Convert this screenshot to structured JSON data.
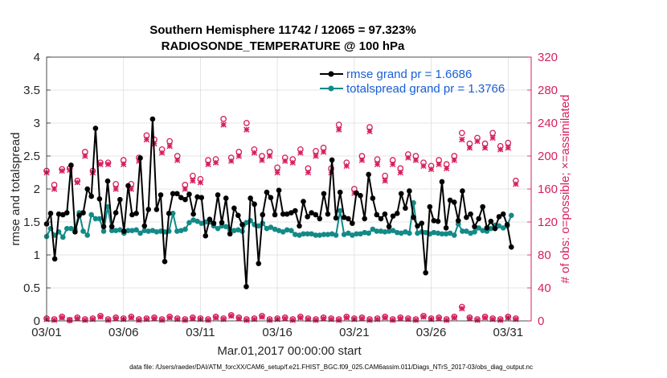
{
  "colors": {
    "rmse": "#000000",
    "spread": "#138a87",
    "obs": "#d61f5a",
    "legend_text": "#1a5fd6",
    "grid": "#dedede",
    "axes": "#262626"
  },
  "chart_data": {
    "type": "line",
    "title": "Southern Hemisphere 11742 / 12065 = 97.323%",
    "subtitle": "RADIOSONDE_TEMPERATURE @ 100 hPa",
    "xlabel": "Mar.01,2017 00:00:00 start",
    "ylabel": "rmse and totalspread",
    "y2label": "# of obs: o=possible; ×=assimilated",
    "footnote": "data file: /Users/raeder/DAI/ATM_forcXX/CAM6_setup/f.e21.FHIST_BGC.f09_025.CAM6assim.011/Diags_NTrS_2017-03/obs_diag_output.nc",
    "xlim": [
      1,
      32.5
    ],
    "ylim": [
      0,
      4
    ],
    "y2lim": [
      0,
      320
    ],
    "x_ticks": [
      1,
      6,
      11,
      16,
      21,
      26,
      31
    ],
    "x_tick_labels": [
      "03/01",
      "03/06",
      "03/11",
      "03/16",
      "03/21",
      "03/26",
      "03/31"
    ],
    "y_ticks": [
      0,
      0.5,
      1,
      1.5,
      2,
      2.5,
      3,
      3.5,
      4
    ],
    "y_tick_labels": [
      "0",
      "0.5",
      "1",
      "1.5",
      "2",
      "2.5",
      "3",
      "3.5",
      "4"
    ],
    "y2_ticks": [
      0,
      40,
      80,
      120,
      160,
      200,
      240,
      280,
      320
    ],
    "y2_tick_labels": [
      "0",
      "40",
      "80",
      "120",
      "160",
      "200",
      "240",
      "280",
      "320"
    ],
    "grid": true,
    "legend_position": "top-right",
    "series": [
      {
        "name": "rmse grand pr = 1.6686",
        "axis": "left",
        "marker": "dot",
        "values": [
          1.47,
          1.63,
          0.94,
          1.62,
          1.61,
          1.64,
          2.36,
          1.35,
          1.6,
          1.64,
          2.0,
          1.89,
          2.92,
          1.85,
          1.43,
          2.12,
          1.43,
          1.64,
          1.84,
          1.36,
          2.05,
          1.61,
          1.63,
          2.47,
          1.44,
          1.69,
          3.06,
          1.69,
          1.91,
          0.9,
          1.63,
          1.93,
          1.93,
          1.87,
          1.84,
          1.92,
          1.62,
          1.88,
          1.87,
          1.29,
          1.54,
          1.48,
          1.91,
          1.49,
          1.86,
          1.32,
          1.71,
          1.6,
          1.46,
          0.52,
          1.86,
          1.77,
          0.87,
          1.61,
          1.95,
          1.87,
          1.61,
          1.98,
          1.62,
          1.62,
          1.64,
          1.67,
          1.44,
          1.81,
          1.58,
          1.64,
          1.61,
          1.55,
          1.93,
          1.62,
          2.44,
          1.56,
          1.95,
          1.57,
          1.55,
          1.48,
          1.94,
          1.9,
          1.55,
          2.22,
          1.86,
          1.61,
          1.55,
          1.62,
          1.43,
          1.59,
          1.63,
          1.93,
          1.71,
          1.97,
          1.57,
          1.44,
          1.48,
          0.73,
          1.73,
          1.52,
          1.51,
          2.11,
          1.41,
          1.83,
          1.8,
          1.52,
          1.97,
          1.57,
          1.62,
          1.43,
          1.55,
          1.73,
          1.41,
          1.51,
          1.4,
          1.58,
          1.62,
          1.46,
          1.12
        ],
        "x": [
          1.0,
          1.26,
          1.53,
          1.79,
          2.06,
          2.32,
          2.59,
          2.85,
          3.12,
          3.38,
          3.65,
          3.91,
          4.18,
          4.44,
          4.71,
          4.97,
          5.24,
          5.5,
          5.77,
          6.03,
          6.3,
          6.56,
          6.83,
          7.09,
          7.36,
          7.62,
          7.89,
          8.15,
          8.42,
          8.68,
          8.95,
          9.21,
          9.48,
          9.74,
          10.01,
          10.27,
          10.54,
          10.8,
          11.07,
          11.33,
          11.6,
          11.86,
          12.13,
          12.39,
          12.66,
          12.92,
          13.19,
          13.45,
          13.72,
          13.98,
          14.25,
          14.51,
          14.78,
          15.04,
          15.31,
          15.57,
          15.84,
          16.1,
          16.37,
          16.63,
          16.9,
          17.16,
          17.43,
          17.69,
          17.96,
          18.22,
          18.49,
          18.75,
          19.02,
          19.28,
          19.55,
          19.81,
          20.08,
          20.34,
          20.61,
          20.87,
          21.14,
          21.4,
          21.67,
          21.93,
          22.2,
          22.46,
          22.73,
          22.99,
          23.26,
          23.52,
          23.79,
          24.05,
          24.32,
          24.58,
          24.85,
          25.11,
          25.38,
          25.64,
          25.91,
          26.17,
          26.44,
          26.7,
          26.97,
          27.23,
          27.5,
          27.76,
          28.03,
          28.29,
          28.56,
          28.82,
          29.09,
          29.35,
          29.62,
          29.88,
          30.15,
          30.41,
          30.68,
          30.94,
          31.21
        ]
      },
      {
        "name": "totalspread grand pr = 1.3766",
        "axis": "left",
        "marker": "dot",
        "values": [
          1.28,
          1.4,
          1.3,
          1.35,
          1.27,
          1.4,
          1.4,
          1.39,
          1.64,
          1.36,
          1.3,
          1.61,
          1.55,
          1.55,
          1.36,
          1.73,
          1.37,
          1.37,
          1.38,
          1.33,
          1.37,
          1.37,
          1.38,
          1.33,
          1.37,
          1.36,
          1.37,
          1.35,
          1.36,
          1.35,
          1.36,
          1.63,
          1.36,
          1.37,
          1.39,
          1.49,
          1.53,
          1.51,
          1.48,
          1.5,
          1.5,
          1.44,
          1.4,
          1.44,
          1.43,
          1.38,
          1.37,
          1.38,
          1.36,
          1.49,
          1.52,
          1.46,
          1.44,
          1.48,
          1.4,
          1.42,
          1.39,
          1.37,
          1.35,
          1.38,
          1.37,
          1.31,
          1.3,
          1.32,
          1.32,
          1.32,
          1.3,
          1.3,
          1.31,
          1.31,
          1.32,
          1.3,
          1.67,
          1.31,
          1.33,
          1.3,
          1.32,
          1.32,
          1.34,
          1.33,
          1.39,
          1.36,
          1.36,
          1.35,
          1.36,
          1.37,
          1.34,
          1.33,
          1.35,
          1.33,
          1.79,
          1.33,
          1.35,
          1.34,
          1.32,
          1.34,
          1.33,
          1.32,
          1.32,
          1.33,
          1.3,
          1.47,
          1.36,
          1.36,
          1.33,
          1.35,
          1.41,
          1.37,
          1.36,
          1.4,
          1.45,
          1.44,
          1.41,
          1.44,
          1.6
        ],
        "x": [
          1.0,
          1.26,
          1.53,
          1.79,
          2.06,
          2.32,
          2.59,
          2.85,
          3.12,
          3.38,
          3.65,
          3.91,
          4.18,
          4.44,
          4.71,
          4.97,
          5.24,
          5.5,
          5.77,
          6.03,
          6.3,
          6.56,
          6.83,
          7.09,
          7.36,
          7.62,
          7.89,
          8.15,
          8.42,
          8.68,
          8.95,
          9.21,
          9.48,
          9.74,
          10.01,
          10.27,
          10.54,
          10.8,
          11.07,
          11.33,
          11.6,
          11.86,
          12.13,
          12.39,
          12.66,
          12.92,
          13.19,
          13.45,
          13.72,
          13.98,
          14.25,
          14.51,
          14.78,
          15.04,
          15.31,
          15.57,
          15.84,
          16.1,
          16.37,
          16.63,
          16.9,
          17.16,
          17.43,
          17.69,
          17.96,
          18.22,
          18.49,
          18.75,
          19.02,
          19.28,
          19.55,
          19.81,
          20.08,
          20.34,
          20.61,
          20.87,
          21.14,
          21.4,
          21.67,
          21.93,
          22.2,
          22.46,
          22.73,
          22.99,
          23.26,
          23.52,
          23.79,
          24.05,
          24.32,
          24.58,
          24.85,
          25.11,
          25.38,
          25.64,
          25.91,
          26.17,
          26.44,
          26.7,
          26.97,
          27.23,
          27.5,
          27.76,
          28.03,
          28.29,
          28.56,
          28.82,
          29.09,
          29.35,
          29.62,
          29.88,
          30.15,
          30.41,
          30.68,
          30.94,
          31.21
        ]
      }
    ],
    "obs_possible": {
      "axis": "right",
      "marker": "o",
      "x": [
        1.0,
        1.5,
        2.0,
        2.5,
        3.0,
        3.5,
        4.0,
        4.5,
        5.0,
        5.5,
        6.0,
        6.5,
        7.0,
        7.5,
        8.0,
        8.5,
        9.0,
        9.5,
        10.0,
        10.5,
        11.0,
        11.5,
        12.0,
        12.5,
        13.0,
        13.5,
        14.0,
        14.5,
        15.0,
        15.5,
        16.0,
        16.5,
        17.0,
        17.5,
        18.0,
        18.5,
        19.0,
        19.5,
        20.0,
        20.5,
        21.0,
        21.5,
        22.0,
        22.5,
        23.0,
        23.5,
        24.0,
        24.5,
        25.0,
        25.5,
        26.0,
        26.5,
        27.0,
        27.5,
        28.0,
        28.5,
        29.0,
        29.5,
        30.0,
        30.5,
        31.0,
        31.5
      ],
      "values": [
        182,
        165,
        184,
        185,
        170,
        205,
        182,
        192,
        192,
        166,
        195,
        166,
        198,
        225,
        220,
        208,
        218,
        200,
        165,
        176,
        172,
        195,
        196,
        245,
        198,
        205,
        240,
        208,
        200,
        205,
        186,
        198,
        196,
        208,
        185,
        206,
        210,
        185,
        238,
        192,
        160,
        200,
        235,
        196,
        176,
        195,
        185,
        202,
        200,
        192,
        188,
        195,
        190,
        200,
        228,
        215,
        222,
        215,
        228,
        212,
        216,
        170
      ]
    },
    "obs_assimilated": {
      "axis": "right",
      "marker": "x",
      "x": [
        1.0,
        1.5,
        2.0,
        2.5,
        3.0,
        3.5,
        4.0,
        4.5,
        5.0,
        5.5,
        6.0,
        6.5,
        7.0,
        7.5,
        8.0,
        8.5,
        9.0,
        9.5,
        10.0,
        10.5,
        11.0,
        11.5,
        12.0,
        12.5,
        13.0,
        13.5,
        14.0,
        14.5,
        15.0,
        15.5,
        16.0,
        16.5,
        17.0,
        17.5,
        18.0,
        18.5,
        19.0,
        19.5,
        20.0,
        20.5,
        21.0,
        21.5,
        22.0,
        22.5,
        23.0,
        23.5,
        24.0,
        24.5,
        25.0,
        25.5,
        26.0,
        26.5,
        27.0,
        27.5,
        28.0,
        28.5,
        29.0,
        29.5,
        30.0,
        30.5,
        31.0,
        31.5
      ],
      "values": [
        180,
        160,
        182,
        183,
        168,
        200,
        180,
        190,
        190,
        160,
        190,
        160,
        194,
        220,
        215,
        204,
        212,
        195,
        160,
        170,
        168,
        190,
        192,
        238,
        194,
        200,
        232,
        204,
        195,
        200,
        180,
        194,
        192,
        204,
        180,
        200,
        205,
        180,
        232,
        188,
        155,
        195,
        230,
        190,
        170,
        190,
        180,
        198,
        195,
        188,
        184,
        190,
        185,
        195,
        220,
        210,
        218,
        210,
        222,
        208,
        210,
        166
      ]
    },
    "obs_possible_low": {
      "axis": "right",
      "marker": "o",
      "x": [
        1.0,
        1.5,
        2.0,
        2.5,
        3.0,
        3.5,
        4.0,
        4.5,
        5.0,
        5.5,
        6.0,
        6.5,
        7.0,
        7.5,
        8.0,
        8.5,
        9.0,
        9.5,
        10.0,
        10.5,
        11.0,
        11.5,
        12.0,
        12.5,
        13.0,
        13.5,
        14.0,
        14.5,
        15.0,
        15.5,
        16.0,
        16.5,
        17.0,
        17.5,
        18.0,
        18.5,
        19.0,
        19.5,
        20.0,
        20.5,
        21.0,
        21.5,
        22.0,
        22.5,
        23.0,
        23.5,
        24.0,
        24.5,
        25.0,
        25.5,
        26.0,
        26.5,
        27.0,
        27.5,
        28.0,
        28.5,
        29.0,
        29.5,
        30.0,
        30.5,
        31.0,
        31.5
      ],
      "values": [
        3,
        2,
        5,
        1,
        4,
        2,
        3,
        6,
        2,
        4,
        3,
        5,
        2,
        3,
        4,
        2,
        5,
        3,
        2,
        4,
        3,
        2,
        5,
        3,
        7,
        4,
        2,
        3,
        6,
        2,
        3,
        4,
        2,
        5,
        3,
        2,
        4,
        3,
        2,
        5,
        3,
        4,
        2,
        3,
        5,
        2,
        4,
        3,
        2,
        6,
        3,
        4,
        2,
        5,
        17,
        4,
        2,
        5,
        3,
        2,
        5,
        3
      ]
    },
    "obs_assimilated_low": {
      "axis": "right",
      "marker": "x",
      "x": [
        1.0,
        1.5,
        2.0,
        2.5,
        3.0,
        3.5,
        4.0,
        4.5,
        5.0,
        5.5,
        6.0,
        6.5,
        7.0,
        7.5,
        8.0,
        8.5,
        9.0,
        9.5,
        10.0,
        10.5,
        11.0,
        11.5,
        12.0,
        12.5,
        13.0,
        13.5,
        14.0,
        14.5,
        15.0,
        15.5,
        16.0,
        16.5,
        17.0,
        17.5,
        18.0,
        18.5,
        19.0,
        19.5,
        20.0,
        20.5,
        21.0,
        21.5,
        22.0,
        22.5,
        23.0,
        23.5,
        24.0,
        24.5,
        25.0,
        25.5,
        26.0,
        26.5,
        27.0,
        27.5,
        28.0,
        28.5,
        29.0,
        29.5,
        30.0,
        30.5,
        31.0,
        31.5
      ],
      "values": [
        2,
        1,
        4,
        1,
        3,
        1,
        2,
        5,
        1,
        3,
        2,
        4,
        1,
        2,
        3,
        1,
        4,
        2,
        1,
        3,
        2,
        1,
        4,
        2,
        6,
        3,
        1,
        2,
        5,
        1,
        2,
        3,
        1,
        4,
        2,
        1,
        3,
        2,
        1,
        4,
        2,
        3,
        1,
        2,
        4,
        1,
        3,
        2,
        1,
        5,
        2,
        3,
        1,
        4,
        15,
        3,
        1,
        4,
        2,
        1,
        4,
        2
      ]
    }
  }
}
